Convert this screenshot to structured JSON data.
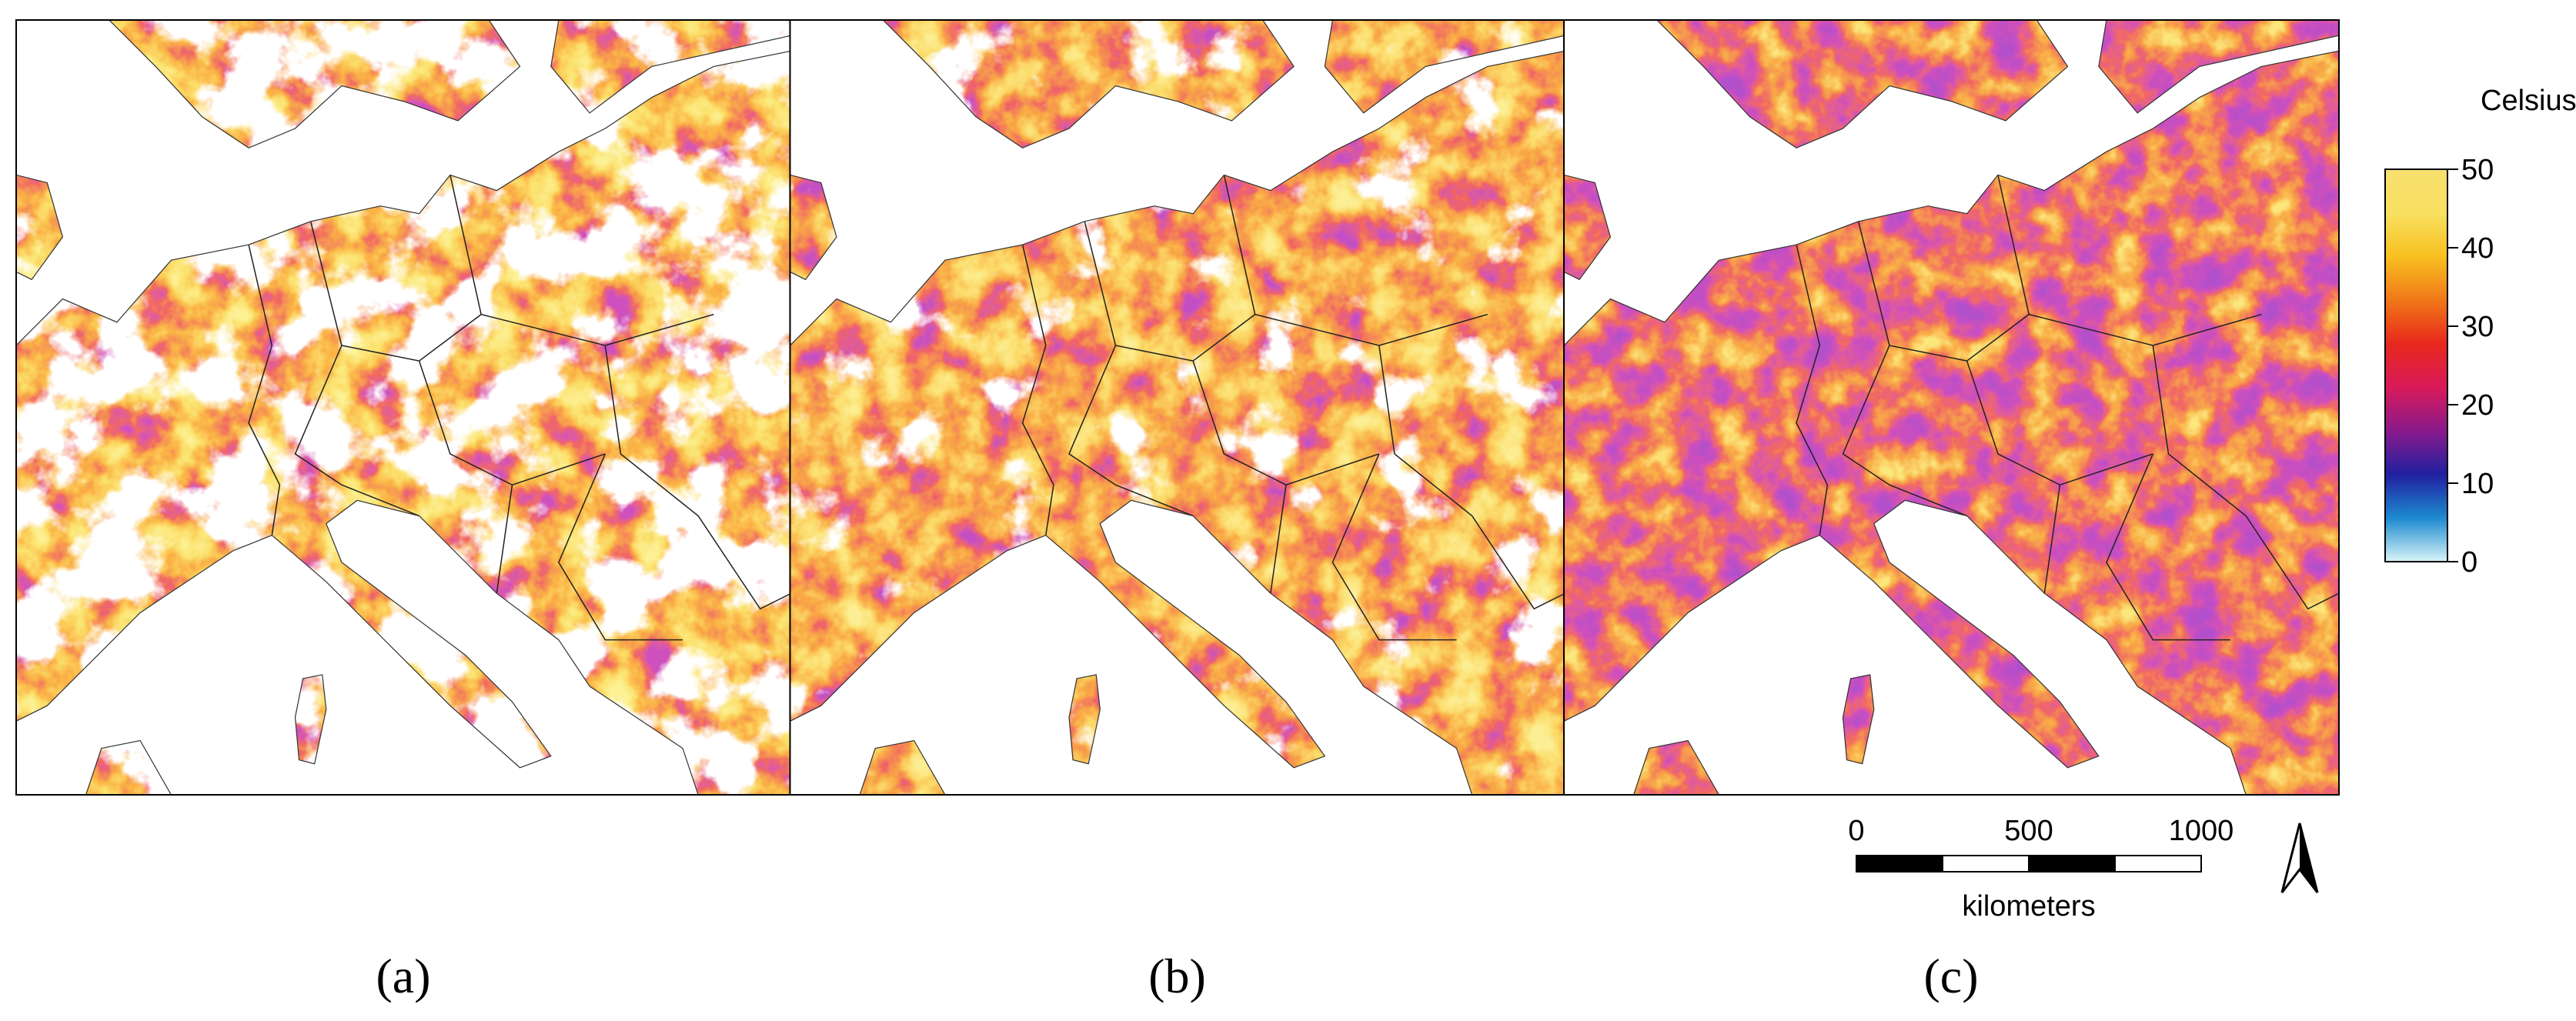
{
  "panels": [
    {
      "label": "(a)"
    },
    {
      "label": "(b)"
    },
    {
      "label": "(c)"
    }
  ],
  "colorbar": {
    "title": "Celsius",
    "lim": [
      0,
      50
    ],
    "ticks": [
      0,
      10,
      20,
      30,
      40,
      50
    ],
    "colors": [
      "#d8f4f8",
      "#1e8ad0",
      "#2020a0",
      "#8a1a8c",
      "#d81a5a",
      "#e8281c",
      "#f07818",
      "#f8c020",
      "#f8e060",
      "#f8e070"
    ]
  },
  "scale_bar": {
    "ticks": [
      0,
      500,
      1000
    ],
    "unit": "kilometers"
  }
}
